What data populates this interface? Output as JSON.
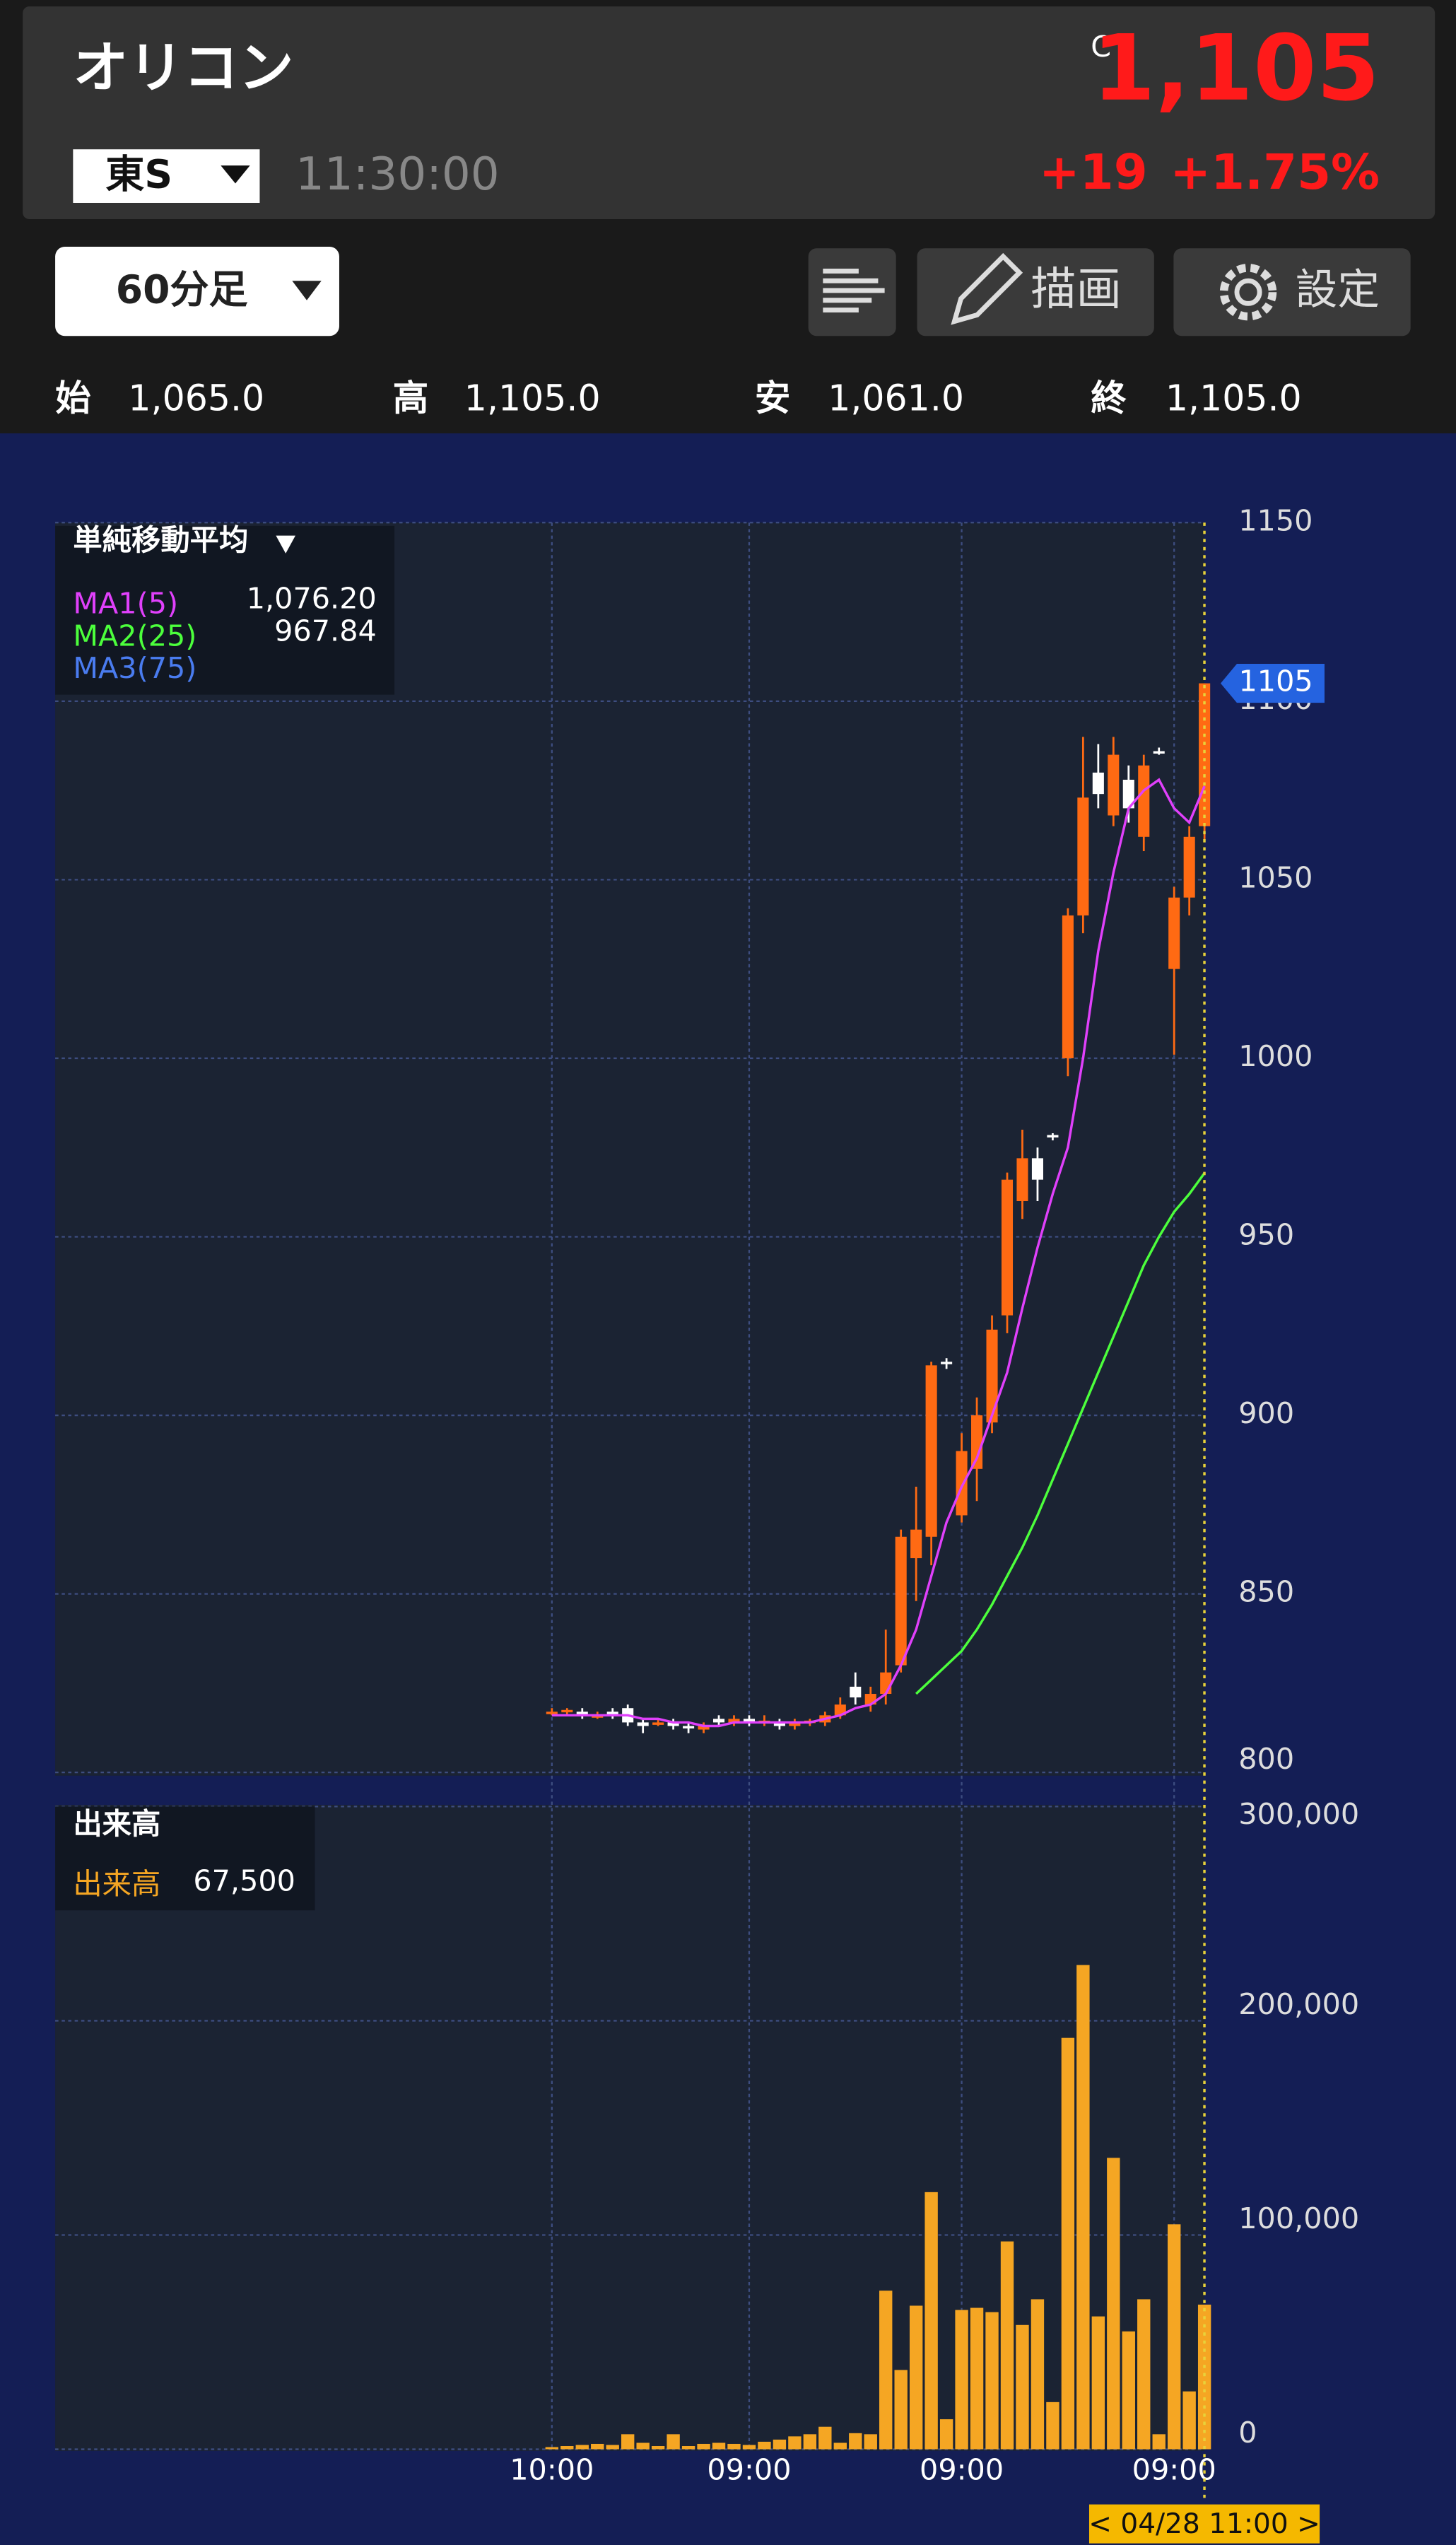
{
  "header": {
    "name": "オリコン",
    "market": "東S",
    "time": "11:30:00",
    "price_flag": "C",
    "price": "1,105",
    "change": "+19",
    "change_pct": "+1.75%"
  },
  "toolbar": {
    "interval": "60分足",
    "draw": "描画",
    "settings": "設定"
  },
  "ohlc": [
    {
      "label": "始",
      "value": "1,065.0"
    },
    {
      "label": "高",
      "value": "1,105.0"
    },
    {
      "label": "安",
      "value": "1,061.0"
    },
    {
      "label": "終",
      "value": "1,105.0"
    }
  ],
  "chart_data": [
    {
      "type": "candlestick",
      "legend_title": "単純移動平均",
      "categories": [
        null,
        null,
        null,
        null,
        null,
        null,
        null,
        null,
        null,
        null,
        null,
        null,
        null,
        null,
        null,
        null,
        null,
        null,
        null,
        null,
        null,
        null,
        null,
        null,
        null,
        null,
        null,
        null,
        null,
        null,
        null,
        null,
        null,
        null,
        null,
        null,
        null,
        null,
        null,
        null,
        null,
        null,
        null,
        null
      ],
      "open": [
        817,
        817,
        817,
        816,
        817,
        818,
        814,
        814,
        814,
        813,
        812,
        815,
        814,
        815,
        814,
        814,
        813,
        814,
        814,
        816,
        824,
        819,
        822,
        830,
        860,
        866,
        915,
        872,
        885,
        898,
        928,
        960,
        972,
        978.5,
        1000,
        1040,
        1080,
        1068,
        1078,
        1062,
        1086,
        1025,
        1045,
        1065
      ],
      "high": [
        818,
        818,
        818,
        817,
        818,
        819,
        815,
        815,
        815,
        814,
        814,
        816,
        816,
        816,
        816,
        815,
        815,
        815,
        817,
        821,
        828,
        824,
        840,
        868,
        880,
        915,
        916,
        895,
        905,
        928,
        968,
        980,
        975,
        979,
        1042,
        1090,
        1088,
        1090,
        1082,
        1085,
        1087,
        1048,
        1065,
        1105
      ],
      "low": [
        816,
        816,
        815,
        815,
        815,
        813,
        811,
        813,
        812,
        811,
        811,
        813,
        813,
        813,
        813,
        812,
        812,
        813,
        813,
        815,
        819,
        817,
        819,
        828,
        848,
        858,
        913,
        870,
        876,
        895,
        923,
        955,
        960,
        977,
        995,
        1035,
        1070,
        1065,
        1066,
        1058,
        1085,
        1001,
        1040,
        1061
      ],
      "close": [
        817,
        817.5,
        816,
        816,
        816,
        814,
        813,
        814,
        813,
        812.5,
        813,
        814,
        815,
        814,
        814.5,
        813,
        814,
        814.5,
        816,
        819,
        821,
        822,
        828,
        866,
        868,
        914,
        914.5,
        890,
        900,
        924,
        966,
        972,
        966,
        978,
        1040,
        1073,
        1074,
        1085,
        1070,
        1082,
        1085.5,
        1045,
        1062,
        1105
      ],
      "up_color": "#ff6a13",
      "down_color": "#ffffff",
      "series": [
        {
          "name": "MA1(5)",
          "color": "#e040fb",
          "legend_value": "1,076.20",
          "values": [
            816,
            816,
            816,
            816,
            816,
            816,
            815,
            815,
            814,
            814,
            813,
            813,
            814,
            814,
            814,
            814,
            814,
            814,
            815,
            816,
            818,
            819,
            822,
            830,
            840,
            855,
            870,
            880,
            888,
            900,
            912,
            930,
            947,
            962,
            975,
            1000,
            1030,
            1052,
            1070,
            1075,
            1078,
            1070,
            1066,
            1076.2
          ]
        },
        {
          "name": "MA2(25)",
          "color": "#4cff3c",
          "legend_value": "967.84",
          "values": [
            null,
            null,
            null,
            null,
            null,
            null,
            null,
            null,
            null,
            null,
            null,
            null,
            null,
            null,
            null,
            null,
            null,
            null,
            null,
            null,
            null,
            null,
            null,
            null,
            822,
            826,
            830,
            834,
            840,
            847,
            855,
            863,
            872,
            882,
            892,
            902,
            912,
            922,
            932,
            942,
            950,
            957,
            962,
            967.84
          ]
        },
        {
          "name": "MA3(75)",
          "color": "#4a7cf0"
        }
      ],
      "ylim": [
        800,
        1150
      ],
      "yticks": [
        800,
        850,
        900,
        950,
        1000,
        1050,
        1100,
        1150
      ],
      "xticks": [
        {
          "value": 0,
          "label": "10:00"
        },
        {
          "value": 13,
          "label": "09:00"
        },
        {
          "value": 27,
          "label": "09:00"
        },
        {
          "value": 41,
          "label": "09:00"
        }
      ],
      "price_marker": {
        "value": 1105,
        "label": "1105"
      },
      "grid": true
    },
    {
      "type": "bar",
      "title": "出来高",
      "color": "#f5a623",
      "series": [
        {
          "name": "出来高",
          "legend_value": "67,500",
          "values": [
            1000,
            1500,
            2000,
            2500,
            2000,
            7000,
            3000,
            1500,
            7000,
            1500,
            2500,
            3000,
            2500,
            2000,
            3500,
            4500,
            6000,
            7000,
            10500,
            3000,
            7500,
            7000,
            74000,
            37000,
            67000,
            120000,
            14000,
            65000,
            66000,
            64000,
            97000,
            58000,
            70000,
            22000,
            192000,
            226000,
            62000,
            136000,
            55000,
            70000,
            7000,
            105000,
            27000,
            67500
          ]
        }
      ],
      "ylim": [
        0,
        300000
      ],
      "yticks": [
        0,
        {
          "value": 100000,
          "label": "100,000"
        },
        {
          "value": 200000,
          "label": "200,000"
        },
        {
          "value": 300000,
          "label": "300,000"
        }
      ],
      "cursor_label": "< 04/28 11:00 >",
      "grid": true
    }
  ]
}
